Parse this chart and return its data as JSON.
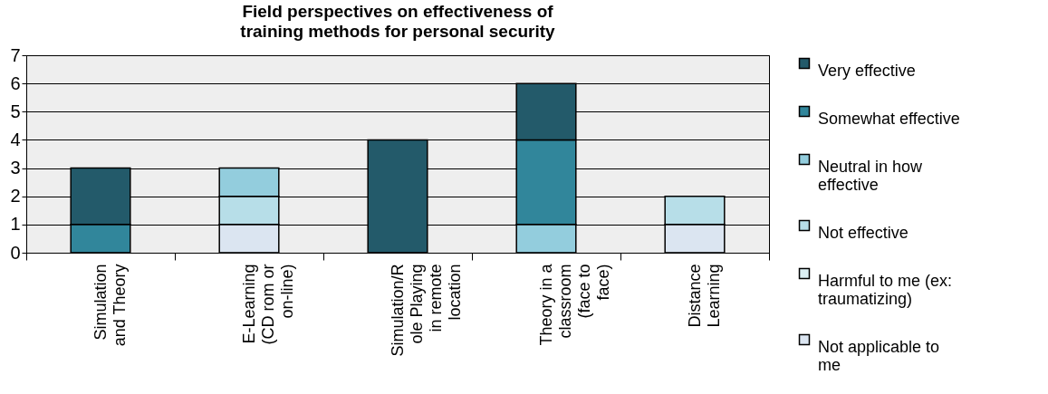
{
  "chart_data": {
    "type": "bar",
    "stacked": true,
    "title": "Field perspectives on effectiveness of training methods for personal security",
    "categories": [
      "Simulation and Theory",
      "E-Learning (CD rom or on-line)",
      "Simulation/Role Playing in remote location",
      "Theory in a classroom (face to face)",
      "Distance Learning"
    ],
    "series": [
      {
        "name": "Not applicable to me",
        "color": "#dbe5f1",
        "values": [
          0,
          1,
          0,
          0,
          1
        ]
      },
      {
        "name": "Harmful to me (ex: traumatizing)",
        "color": "#dcf0f4",
        "values": [
          0,
          0,
          0,
          0,
          0
        ]
      },
      {
        "name": "Not effective",
        "color": "#b7dee8",
        "values": [
          0,
          1,
          0,
          0,
          1
        ]
      },
      {
        "name": "Neutral in how effective",
        "color": "#93cddd",
        "values": [
          0,
          1,
          0,
          1,
          0
        ]
      },
      {
        "name": "Somewhat effective",
        "color": "#31869b",
        "values": [
          1,
          0,
          0,
          3,
          0
        ]
      },
      {
        "name": "Very effective",
        "color": "#235a6a",
        "values": [
          2,
          0,
          4,
          2,
          0
        ]
      }
    ],
    "ylim": [
      0,
      7
    ],
    "yticks": [
      0,
      1,
      2,
      3,
      4,
      5,
      6,
      7
    ],
    "grid": "y",
    "legend": "right"
  }
}
